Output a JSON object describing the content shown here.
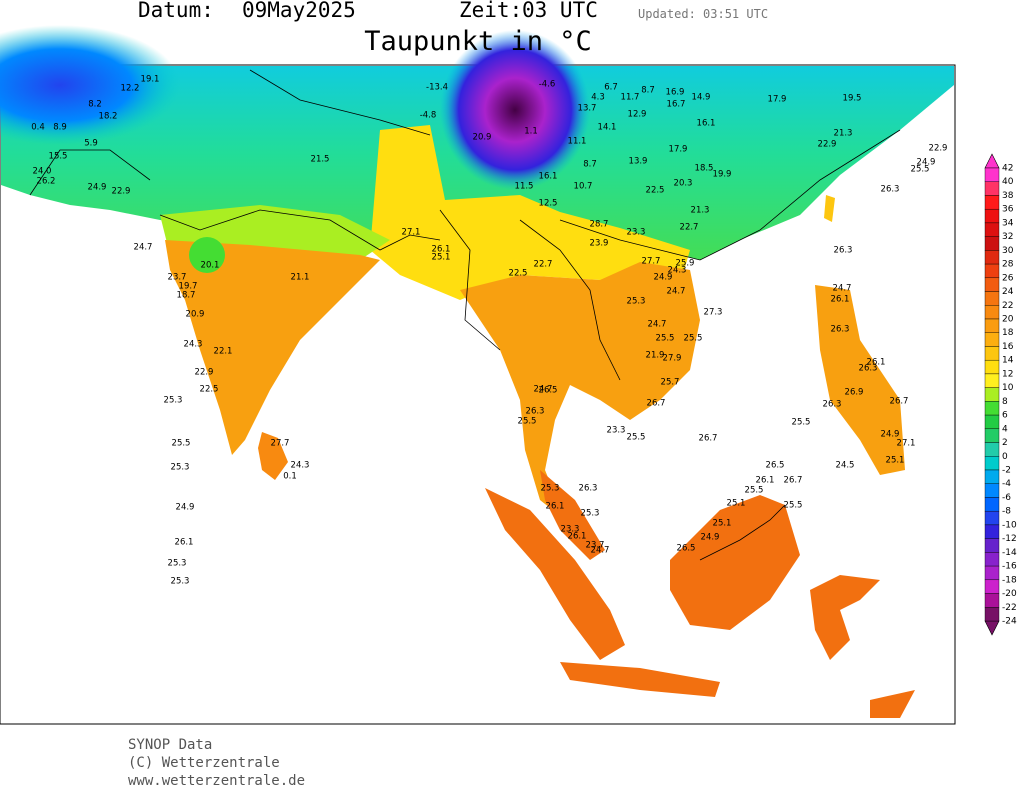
{
  "header": {
    "date_label": "Datum:",
    "date": "09May2025",
    "time_label": "Zeit:",
    "time": "03 UTC",
    "updated": "Updated: 03:51 UTC",
    "title": "Taupunkt in °C"
  },
  "legend": {
    "ticks": [
      42,
      40,
      38,
      36,
      34,
      32,
      30,
      28,
      26,
      24,
      22,
      20,
      18,
      16,
      14,
      12,
      10,
      8,
      6,
      4,
      2,
      0,
      -2,
      -4,
      -6,
      -8,
      -10,
      -12,
      -14,
      -16,
      -18,
      -20,
      -22,
      -24
    ],
    "colors": [
      "#ff33cc",
      "#ff3366",
      "#ff1a1a",
      "#ee1111",
      "#dd1111",
      "#cc1111",
      "#e02a10",
      "#ee4010",
      "#f25c10",
      "#f57510",
      "#f88a10",
      "#fa9c10",
      "#fcae10",
      "#fdc610",
      "#ffde10",
      "#ffef20",
      "#aaee22",
      "#44dd33",
      "#22cc44",
      "#22cc66",
      "#22ccaa",
      "#00cccc",
      "#00aaee",
      "#0088ff",
      "#0066ff",
      "#2244ee",
      "#3322dd",
      "#6622cc",
      "#8822cc",
      "#aa22cc",
      "#cc22cc",
      "#aa1199",
      "#771166"
    ]
  },
  "stations": [
    "-13.4",
    "-4.8",
    "-4.6",
    "1.1",
    "6.7",
    "4.3",
    "11.7",
    "8.7",
    "13.7",
    "12.9",
    "14.1",
    "11.1",
    "16.9",
    "14.9",
    "16.7",
    "16.1",
    "17.9",
    "19.5",
    "21.3",
    "22.9",
    "24.9",
    "20.9",
    "17.9",
    "13.9",
    "8.7",
    "16.1",
    "10.7",
    "11.5",
    "12.5",
    "22.5",
    "20.3",
    "18.5",
    "19.9",
    "21.3",
    "22.7",
    "21.5",
    "21.1",
    "19.7",
    "18.7",
    "20.9",
    "24.3",
    "22.1",
    "22.9",
    "22.5",
    "25.3",
    "25.5",
    "25.3",
    "24.9",
    "26.1",
    "25.3",
    "25.3",
    "27.7",
    "0.1",
    "24.3",
    "20.1",
    "24.0",
    "26.2",
    "0.4",
    "8.9",
    "15.5",
    "19.1",
    "12.2",
    "8.2",
    "18.2",
    "5.9",
    "24.9",
    "22.9",
    "24.7",
    "23.7",
    "25.1",
    "26.1",
    "27.1",
    "22.5",
    "22.7",
    "25.3",
    "24.7",
    "25.5",
    "21.9",
    "27.9",
    "25.7",
    "26.7",
    "25.5",
    "23.3",
    "26.7",
    "26.5",
    "24.7",
    "25.5",
    "26.3",
    "25.3",
    "26.3",
    "26.1",
    "25.3",
    "23.3",
    "26.1",
    "23.7",
    "24.7",
    "26.5",
    "26.1",
    "26.7",
    "25.5",
    "25.5",
    "25.1",
    "25.1",
    "24.9",
    "26.5",
    "27.7",
    "23.9",
    "28.7",
    "23.3",
    "25.9",
    "24.9",
    "24.3",
    "24.7",
    "27.3",
    "25.5",
    "25.5",
    "26.3",
    "24.7",
    "26.1",
    "26.3",
    "26.1",
    "26.9",
    "26.3",
    "24.5",
    "25.1",
    "27.1",
    "24.9",
    "26.7",
    "26.3",
    "26.3",
    "25.5",
    "22.9"
  ],
  "footer": {
    "source": "SYNOP Data",
    "copyright": "(C) Wetterzentrale",
    "url": "www.wetterzentrale.de"
  }
}
